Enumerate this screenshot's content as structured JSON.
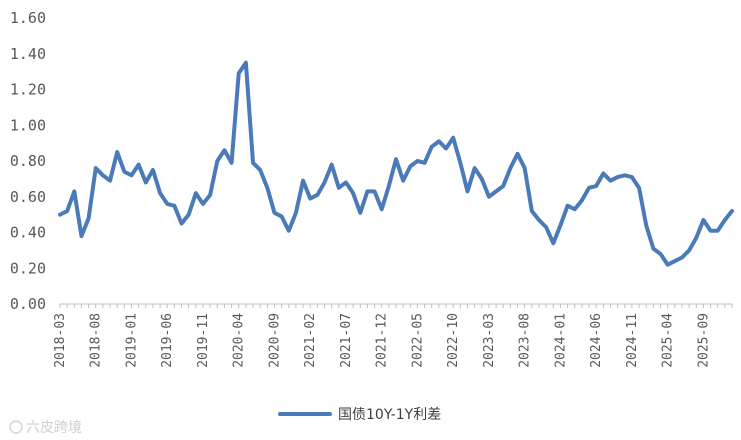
{
  "chart_data": {
    "type": "line",
    "title": "",
    "xlabel": "",
    "ylabel": "",
    "ylim": [
      0,
      1.6
    ],
    "yticks": [
      "0.00",
      "0.20",
      "0.40",
      "0.60",
      "0.80",
      "1.00",
      "1.20",
      "1.40",
      "1.60"
    ],
    "x_tick_labels": [
      "2018-03",
      "2018-08",
      "2019-01",
      "2019-06",
      "2019-11",
      "2020-04",
      "2020-09",
      "2021-02",
      "2021-07",
      "2021-12",
      "2022-05",
      "2022-10",
      "2023-03",
      "2023-08",
      "2024-01",
      "2024-06",
      "2024-11",
      "2025-04",
      "2025-09"
    ],
    "grid": false,
    "legend_position": "bottom-center",
    "color": "#4a7ab8",
    "series": [
      {
        "name": "国债10Y-1Y利差",
        "x": [
          "2018-03",
          "2018-04",
          "2018-05",
          "2018-06",
          "2018-07",
          "2018-08",
          "2018-09",
          "2018-10",
          "2018-11",
          "2018-12",
          "2019-01",
          "2019-02",
          "2019-03",
          "2019-04",
          "2019-05",
          "2019-06",
          "2019-07",
          "2019-08",
          "2019-09",
          "2019-10",
          "2019-11",
          "2019-12",
          "2020-01",
          "2020-02",
          "2020-03",
          "2020-04",
          "2020-05",
          "2020-06",
          "2020-07",
          "2020-08",
          "2020-09",
          "2020-10",
          "2020-11",
          "2020-12",
          "2021-01",
          "2021-02",
          "2021-03",
          "2021-04",
          "2021-05",
          "2021-06",
          "2021-07",
          "2021-08",
          "2021-09",
          "2021-10",
          "2021-11",
          "2021-12",
          "2022-01",
          "2022-02",
          "2022-03",
          "2022-04",
          "2022-05",
          "2022-06",
          "2022-07",
          "2022-08",
          "2022-09",
          "2022-10",
          "2022-11",
          "2022-12",
          "2023-01",
          "2023-02",
          "2023-03",
          "2023-04",
          "2023-05",
          "2023-06",
          "2023-07",
          "2023-08",
          "2023-09",
          "2023-10",
          "2023-11",
          "2023-12",
          "2024-01",
          "2024-02",
          "2024-03",
          "2024-04",
          "2024-05",
          "2024-06",
          "2024-07",
          "2024-08",
          "2024-09",
          "2024-10",
          "2024-11",
          "2024-12",
          "2025-01",
          "2025-02",
          "2025-03",
          "2025-04",
          "2025-05",
          "2025-06",
          "2025-07",
          "2025-08",
          "2025-09",
          "2025-10",
          "2025-11",
          "2025-12",
          "2026-01"
        ],
        "values": [
          0.5,
          0.52,
          0.63,
          0.38,
          0.48,
          0.76,
          0.72,
          0.69,
          0.85,
          0.74,
          0.72,
          0.78,
          0.68,
          0.75,
          0.62,
          0.56,
          0.55,
          0.45,
          0.5,
          0.62,
          0.56,
          0.61,
          0.8,
          0.86,
          0.79,
          1.29,
          1.35,
          0.79,
          0.75,
          0.65,
          0.51,
          0.49,
          0.41,
          0.51,
          0.69,
          0.59,
          0.61,
          0.68,
          0.78,
          0.65,
          0.68,
          0.62,
          0.51,
          0.63,
          0.63,
          0.53,
          0.66,
          0.81,
          0.69,
          0.77,
          0.8,
          0.79,
          0.88,
          0.91,
          0.87,
          0.93,
          0.79,
          0.63,
          0.76,
          0.7,
          0.6,
          0.63,
          0.66,
          0.76,
          0.84,
          0.76,
          0.52,
          0.47,
          0.43,
          0.34,
          0.44,
          0.55,
          0.53,
          0.58,
          0.65,
          0.66,
          0.73,
          0.69,
          0.71,
          0.72,
          0.71,
          0.65,
          0.44,
          0.31,
          0.28,
          0.22,
          0.24,
          0.26,
          0.3,
          0.37,
          0.47,
          0.41,
          0.41,
          0.47,
          0.52
        ]
      }
    ]
  },
  "legend": {
    "label": "国债10Y-1Y利差"
  },
  "watermark": {
    "text": "六皮跨境"
  }
}
